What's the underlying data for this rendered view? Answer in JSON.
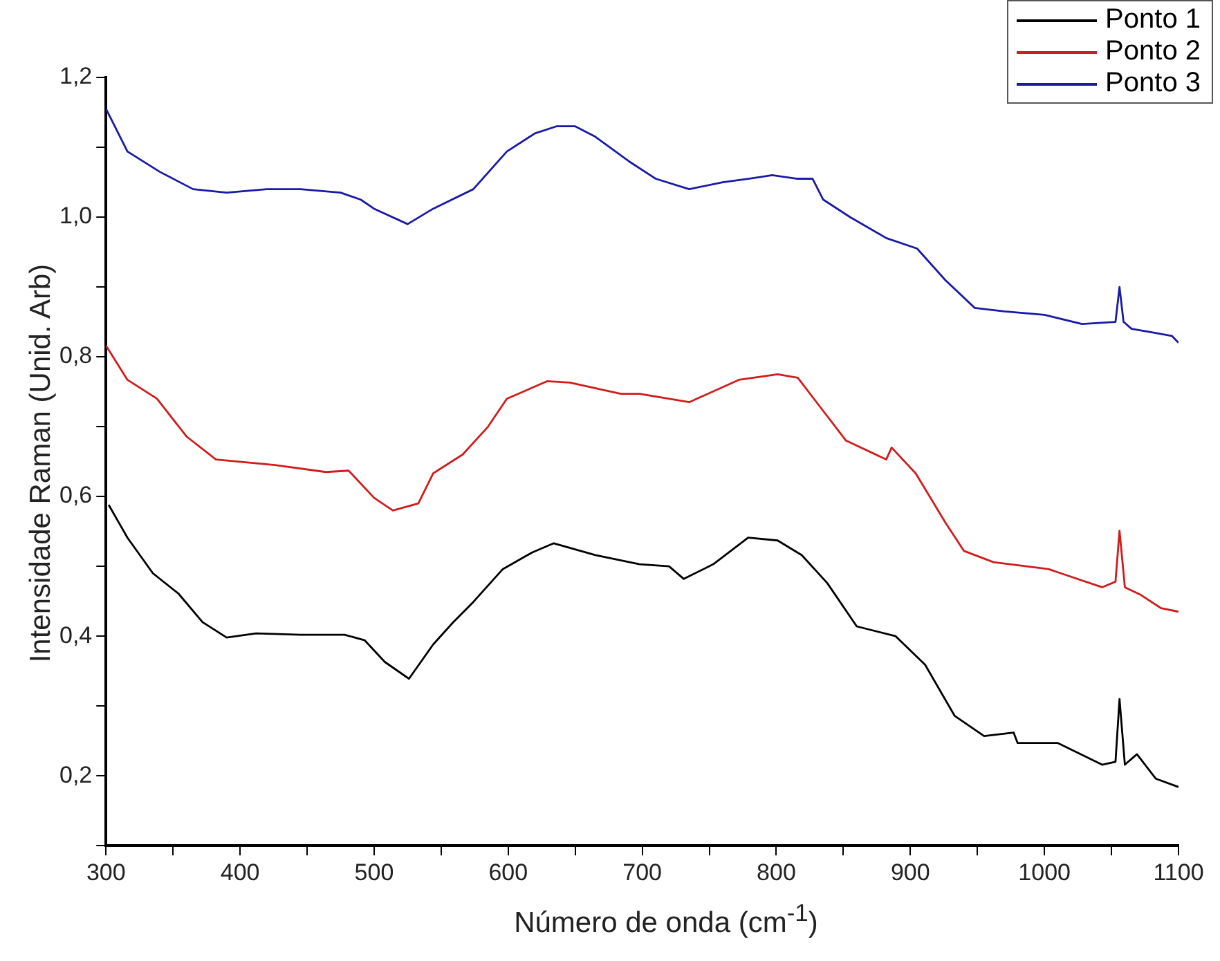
{
  "chart_data": {
    "type": "line",
    "xlabel": "Número de onda (cm$^{-1}$)",
    "ylabel": "Intensidade Raman (Unid. Arb)",
    "xlim": [
      300,
      1100
    ],
    "ylim": [
      0.1,
      1.2
    ],
    "xticks": [
      300,
      {
        "value": 350,
        "label": null
      },
      400,
      {
        "value": 450,
        "label": null
      },
      500,
      {
        "value": 550,
        "label": null
      },
      600,
      {
        "value": 650,
        "label": null
      },
      700,
      {
        "value": 750,
        "label": null
      },
      800,
      {
        "value": 850,
        "label": null
      },
      900,
      {
        "value": 950,
        "label": null
      },
      1000,
      {
        "value": 1050,
        "label": null
      },
      1100
    ],
    "yticks": [
      {
        "value": 0.1,
        "label": null
      },
      {
        "value": 0.2,
        "label": "0,2"
      },
      {
        "value": 0.3,
        "label": null
      },
      {
        "value": 0.4,
        "label": "0,4"
      },
      {
        "value": 0.5,
        "label": null
      },
      {
        "value": 0.6,
        "label": "0,6"
      },
      {
        "value": 0.7,
        "label": null
      },
      {
        "value": 0.8,
        "label": "0,8"
      },
      {
        "value": 0.9,
        "label": null
      },
      {
        "value": 1.0,
        "label": "1,0"
      },
      {
        "value": 1.1,
        "label": null
      },
      {
        "value": 1.2,
        "label": "1,2"
      }
    ],
    "grid": false,
    "legend": "top right",
    "marker": "none",
    "line_style": "solid",
    "series": [
      {
        "name": "Ponto 1",
        "color": "#000000",
        "x": [
          302,
          316,
          335,
          354,
          372,
          390,
          412,
          445,
          478,
          493,
          508,
          526,
          544,
          559,
          574,
          596,
          618,
          634,
          665,
          698,
          720,
          731,
          753,
          779,
          801,
          819,
          838,
          860,
          889,
          911,
          933,
          955,
          977,
          980,
          1010,
          1043,
          1053,
          1056,
          1060,
          1069,
          1083,
          1100
        ],
        "values": [
          0.588,
          0.541,
          0.49,
          0.461,
          0.42,
          0.398,
          0.404,
          0.402,
          0.402,
          0.394,
          0.363,
          0.339,
          0.388,
          0.42,
          0.449,
          0.496,
          0.52,
          0.533,
          0.516,
          0.503,
          0.5,
          0.482,
          0.503,
          0.541,
          0.537,
          0.516,
          0.476,
          0.414,
          0.4,
          0.359,
          0.286,
          0.257,
          0.262,
          0.247,
          0.247,
          0.216,
          0.22,
          0.31,
          0.216,
          0.231,
          0.196,
          0.184
        ]
      },
      {
        "name": "Ponto 2",
        "color": "#d01c1c",
        "x": [
          300,
          316,
          338,
          360,
          382,
          426,
          464,
          481,
          500,
          514,
          533,
          544,
          566,
          585,
          599,
          629,
          646,
          684,
          698,
          735,
          772,
          801,
          816,
          830,
          852,
          882,
          886,
          904,
          926,
          940,
          962,
          1003,
          1043,
          1053,
          1056,
          1060,
          1072,
          1087,
          1100
        ],
        "values": [
          0.816,
          0.767,
          0.74,
          0.686,
          0.653,
          0.645,
          0.635,
          0.637,
          0.598,
          0.58,
          0.59,
          0.633,
          0.66,
          0.7,
          0.74,
          0.765,
          0.763,
          0.747,
          0.747,
          0.735,
          0.767,
          0.775,
          0.77,
          0.735,
          0.68,
          0.653,
          0.67,
          0.633,
          0.563,
          0.522,
          0.506,
          0.496,
          0.47,
          0.478,
          0.551,
          0.47,
          0.459,
          0.44,
          0.435
        ]
      },
      {
        "name": "Ponto 3",
        "color": "#1a1aa6",
        "x": [
          300,
          316,
          340,
          365,
          390,
          420,
          445,
          475,
          490,
          500,
          525,
          544,
          574,
          599,
          620,
          636,
          650,
          665,
          690,
          710,
          735,
          760,
          780,
          797,
          815,
          827,
          835,
          855,
          882,
          905,
          926,
          948,
          970,
          1000,
          1028,
          1053,
          1056,
          1059,
          1065,
          1080,
          1095,
          1100
        ],
        "values": [
          1.155,
          1.094,
          1.065,
          1.04,
          1.035,
          1.04,
          1.04,
          1.035,
          1.025,
          1.012,
          0.99,
          1.012,
          1.04,
          1.094,
          1.12,
          1.13,
          1.13,
          1.115,
          1.08,
          1.055,
          1.04,
          1.05,
          1.055,
          1.06,
          1.055,
          1.055,
          1.025,
          1.0,
          0.97,
          0.955,
          0.91,
          0.87,
          0.865,
          0.86,
          0.847,
          0.85,
          0.9,
          0.85,
          0.84,
          0.835,
          0.83,
          0.82
        ]
      }
    ]
  }
}
